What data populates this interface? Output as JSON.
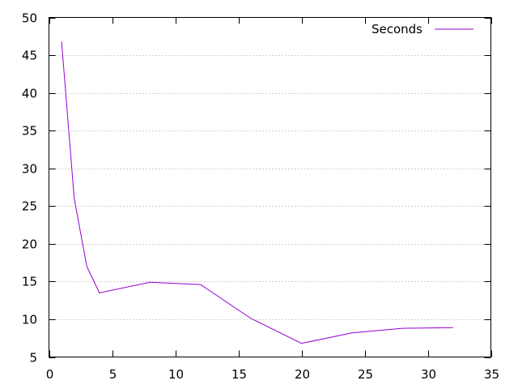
{
  "chart_data": {
    "type": "line",
    "title": "",
    "xlabel": "",
    "ylabel": "",
    "xlim": [
      0,
      35
    ],
    "ylim": [
      5,
      50
    ],
    "x_ticks": [
      0,
      5,
      10,
      15,
      20,
      25,
      30,
      35
    ],
    "y_ticks": [
      5,
      10,
      15,
      20,
      25,
      30,
      35,
      40,
      45,
      50
    ],
    "grid": "horizontal-dotted",
    "legend_position": "top-right",
    "series": [
      {
        "name": "Seconds",
        "color": "#9400d3",
        "points": [
          {
            "x": 1,
            "y": 46.8
          },
          {
            "x": 2,
            "y": 26.0
          },
          {
            "x": 3,
            "y": 17.0
          },
          {
            "x": 4,
            "y": 13.5
          },
          {
            "x": 8,
            "y": 14.9
          },
          {
            "x": 12,
            "y": 14.6
          },
          {
            "x": 16,
            "y": 10.1
          },
          {
            "x": 20,
            "y": 6.8
          },
          {
            "x": 24,
            "y": 8.2
          },
          {
            "x": 28,
            "y": 8.8
          },
          {
            "x": 32,
            "y": 8.9
          }
        ]
      }
    ]
  }
}
